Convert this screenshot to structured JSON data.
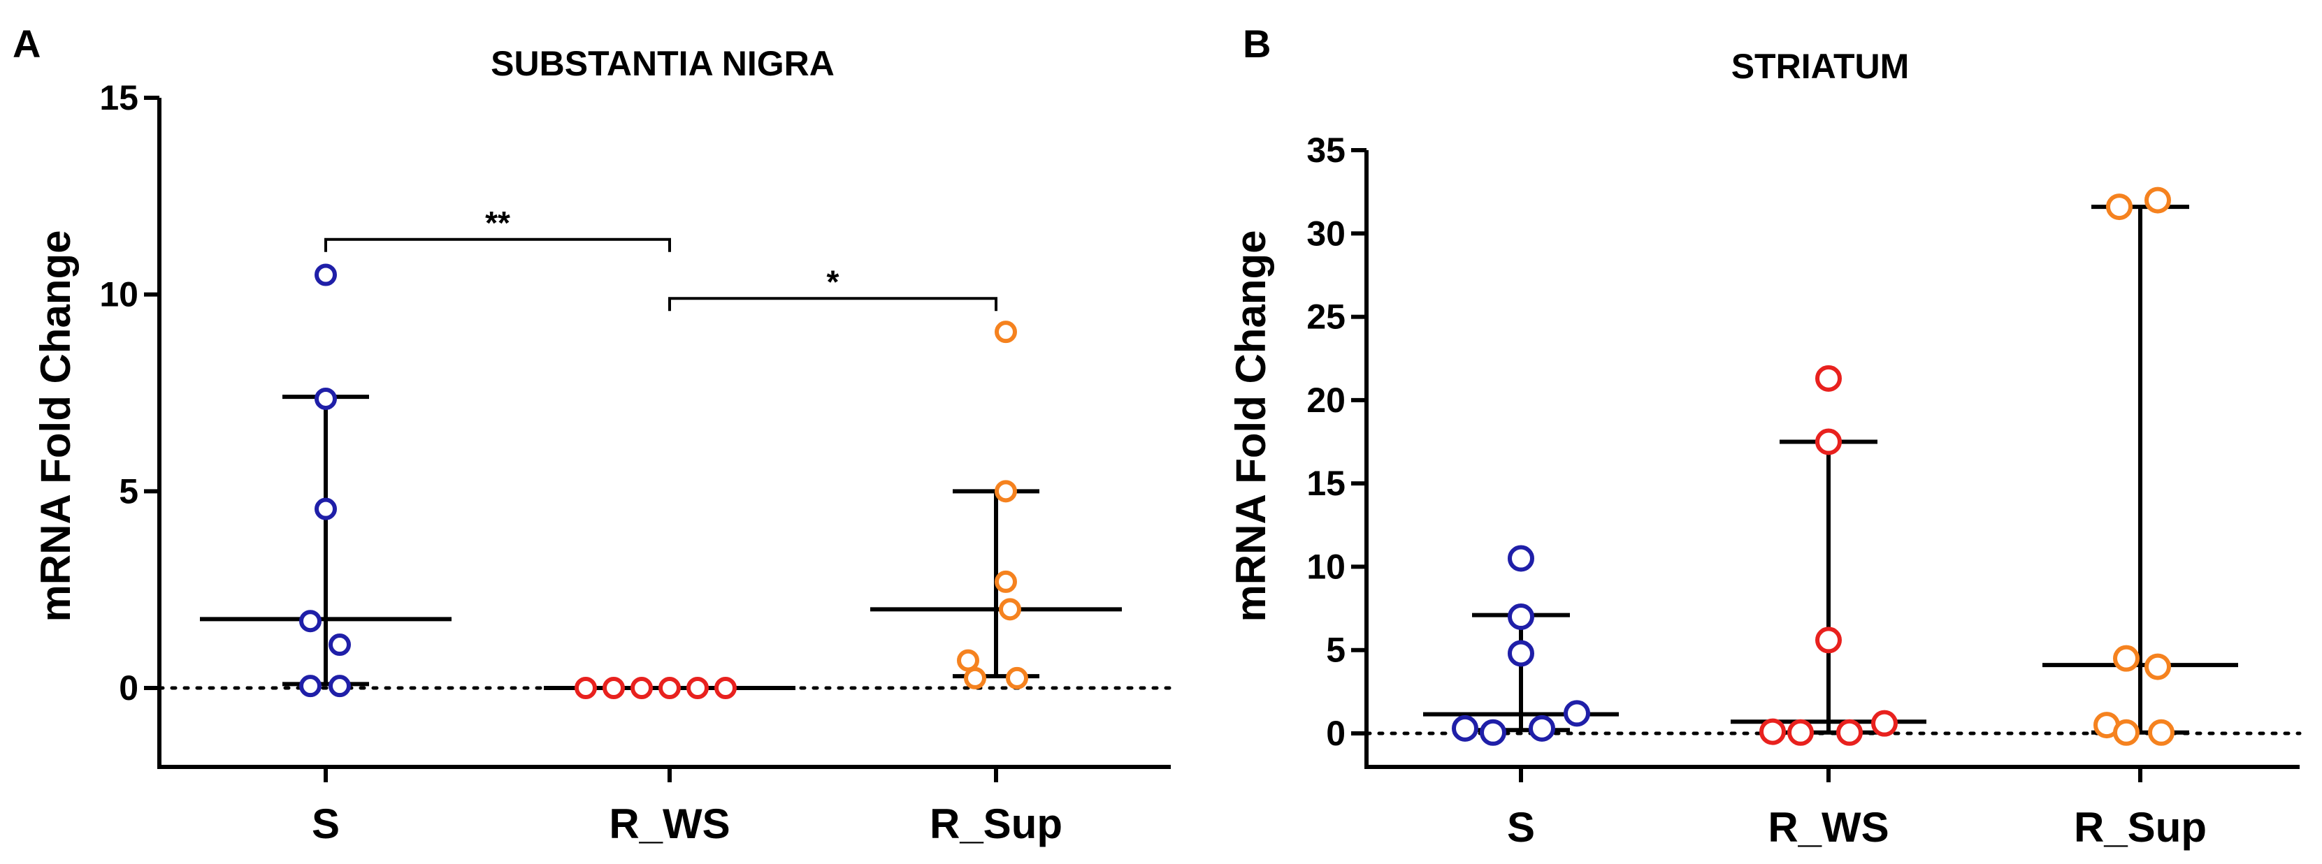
{
  "chart_data": [
    {
      "type": "scatter",
      "panel": "A",
      "title": "SUBSTANTIA NIGRA",
      "ylabel": "mRNA Fold Change",
      "xlabel": "",
      "ylim": [
        -2,
        15
      ],
      "yticks": [
        0,
        5,
        10,
        15
      ],
      "reference_line": 0,
      "categories": [
        "S",
        "R_WS",
        "R_Sup"
      ],
      "series": [
        {
          "name": "S",
          "color": "#1f1fa8",
          "values": [
            10.5,
            7.35,
            4.55,
            1.7,
            1.1,
            0.05,
            0.05
          ],
          "median": 1.75,
          "range_low": 0.1,
          "range_high": 7.4
        },
        {
          "name": "R_WS",
          "color": "#e8211e",
          "values": [
            0.0,
            0.0,
            0.0,
            0.0,
            0.0,
            0.0
          ],
          "median": 0.0,
          "range_low": 0.0,
          "range_high": 0.0
        },
        {
          "name": "R_Sup",
          "color": "#f5821f",
          "values": [
            9.05,
            5.0,
            2.7,
            2.0,
            0.7,
            0.25,
            0.25
          ],
          "median": 2.0,
          "range_low": 0.3,
          "range_high": 5.0
        }
      ],
      "significance": [
        {
          "from": "S",
          "to": "R_WS",
          "label": "**",
          "y": 11.4
        },
        {
          "from": "R_WS",
          "to": "R_Sup",
          "label": "*",
          "y": 9.9
        }
      ]
    },
    {
      "type": "scatter",
      "panel": "B",
      "title": "STRIATUM",
      "ylabel": "mRNA Fold Change",
      "xlabel": "",
      "ylim": [
        -2,
        35
      ],
      "yticks": [
        0,
        5,
        10,
        15,
        20,
        25,
        30,
        35
      ],
      "reference_line": 0,
      "categories": [
        "S",
        "R_WS",
        "R_Sup"
      ],
      "series": [
        {
          "name": "S",
          "color": "#1f1fa8",
          "values": [
            10.5,
            7.0,
            4.8,
            1.2,
            0.3,
            0.05,
            0.3
          ],
          "median": 1.15,
          "range_low": 0.2,
          "range_high": 7.1
        },
        {
          "name": "R_WS",
          "color": "#e8211e",
          "values": [
            21.3,
            17.5,
            5.6,
            0.6,
            0.1,
            0.05,
            0.05
          ],
          "median": 0.7,
          "range_low": 0.05,
          "range_high": 17.5
        },
        {
          "name": "R_Sup",
          "color": "#f5821f",
          "values": [
            31.6,
            32.0,
            4.5,
            4.0,
            0.5,
            0.05,
            0.05
          ],
          "median": 4.1,
          "range_low": 0.05,
          "range_high": 31.6
        }
      ]
    }
  ]
}
